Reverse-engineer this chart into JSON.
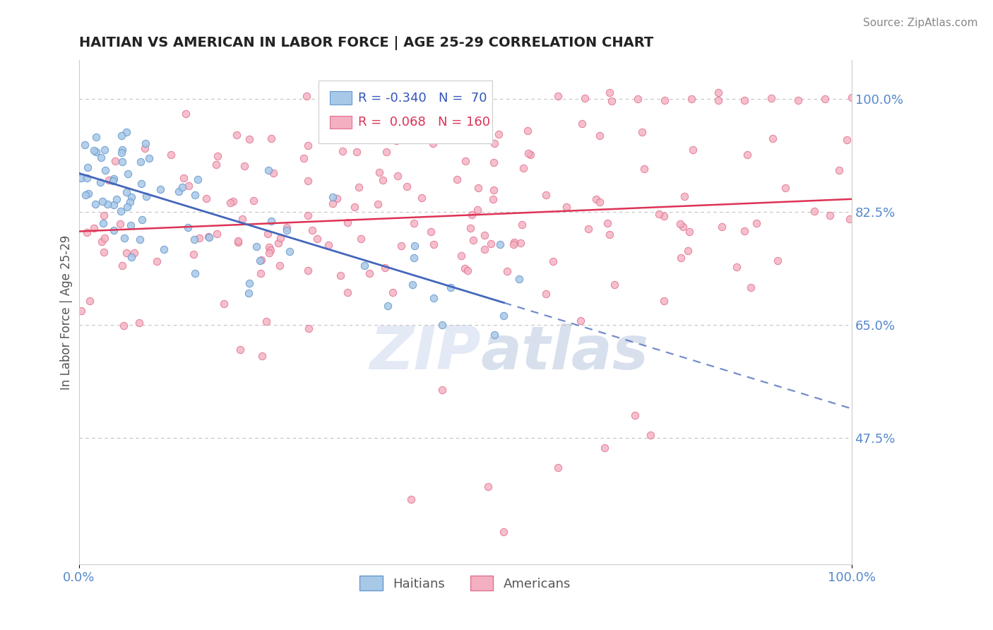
{
  "title": "HAITIAN VS AMERICAN IN LABOR FORCE | AGE 25-29 CORRELATION CHART",
  "source_text": "Source: ZipAtlas.com",
  "ylabel": "In Labor Force | Age 25-29",
  "xlim": [
    0.0,
    1.0
  ],
  "ylim": [
    0.28,
    1.06
  ],
  "yticks": [
    0.475,
    0.65,
    0.825,
    1.0
  ],
  "ytick_labels": [
    "47.5%",
    "65.0%",
    "82.5%",
    "100.0%"
  ],
  "xtick_labels": [
    "0.0%",
    "100.0%"
  ],
  "haitian_color": "#a8c8e8",
  "american_color": "#f4b0c0",
  "haitian_edge_color": "#6699cc",
  "american_edge_color": "#e07090",
  "trend_haitian_color": "#4466bb",
  "trend_american_color": "#dd3355",
  "legend_r_haitian": "-0.340",
  "legend_n_haitian": "70",
  "legend_r_american": "0.068",
  "legend_n_american": "160",
  "watermark_text": "ZIP atlas",
  "background_color": "#ffffff",
  "grid_color": "#bbbbbb",
  "title_color": "#222222",
  "axis_label_color": "#555555",
  "tick_label_color": "#5588cc",
  "source_color": "#888888",
  "legend_text_color_blue": "#3355bb",
  "legend_text_color_pink": "#dd3355"
}
